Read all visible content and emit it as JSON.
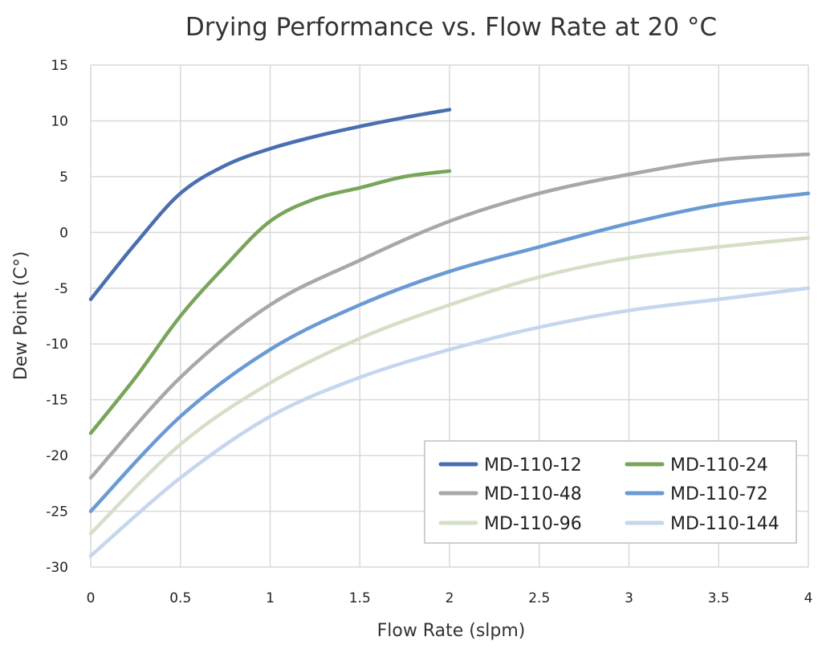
{
  "chart_data": {
    "type": "line",
    "title": "Drying Performance vs. Flow Rate at 20 °C",
    "xlabel": "Flow Rate (slpm)",
    "ylabel": "Dew Point (C°)",
    "xlim": [
      0,
      4
    ],
    "ylim": [
      -30,
      15
    ],
    "x_ticks": [
      0,
      0.5,
      1,
      1.5,
      2,
      2.5,
      3,
      3.5,
      4
    ],
    "y_ticks": [
      15,
      10,
      5,
      0,
      -5,
      -10,
      -15,
      -20,
      -25,
      -30
    ],
    "x_tick_labels": [
      "0",
      "0.5",
      "1",
      "1.5",
      "2",
      "2.5",
      "3",
      "3.5",
      "4"
    ],
    "y_tick_labels": [
      "15",
      "10",
      "5",
      "0",
      "-5",
      "-10",
      "-15",
      "-20",
      "-25",
      "-30"
    ],
    "grid": true,
    "legend_position": "bottom-right",
    "series": [
      {
        "name": "MD-110-12",
        "color": "#4a6fb0",
        "x": [
          0,
          0.25,
          0.5,
          0.75,
          1,
          1.25,
          1.5,
          1.75,
          2
        ],
        "y": [
          -6,
          -1,
          3.5,
          6,
          7.5,
          8.6,
          9.5,
          10.3,
          11
        ]
      },
      {
        "name": "MD-110-24",
        "color": "#78a55a",
        "x": [
          0,
          0.25,
          0.5,
          0.75,
          1,
          1.25,
          1.5,
          1.75,
          2
        ],
        "y": [
          -18,
          -13,
          -7.5,
          -3,
          1,
          3,
          4,
          5,
          5.5
        ]
      },
      {
        "name": "MD-110-48",
        "color": "#a8a8a8",
        "x": [
          0,
          0.5,
          1,
          1.5,
          2,
          2.5,
          3,
          3.5,
          4
        ],
        "y": [
          -22,
          -13,
          -6.5,
          -2.5,
          1,
          3.5,
          5.2,
          6.5,
          7
        ]
      },
      {
        "name": "MD-110-72",
        "color": "#6a9ad4",
        "x": [
          0,
          0.5,
          1,
          1.5,
          2,
          2.5,
          3,
          3.5,
          4
        ],
        "y": [
          -25,
          -16.5,
          -10.5,
          -6.5,
          -3.5,
          -1.3,
          0.8,
          2.5,
          3.5
        ]
      },
      {
        "name": "MD-110-96",
        "color": "#d5dfc8",
        "x": [
          0,
          0.5,
          1,
          1.5,
          2,
          2.5,
          3,
          3.5,
          4
        ],
        "y": [
          -27,
          -19,
          -13.5,
          -9.5,
          -6.5,
          -4,
          -2.3,
          -1.3,
          -0.5
        ]
      },
      {
        "name": "MD-110-144",
        "color": "#c5d6ee",
        "x": [
          0,
          0.5,
          1,
          1.5,
          2,
          2.5,
          3,
          3.5,
          4
        ],
        "y": [
          -29,
          -22,
          -16.5,
          -13,
          -10.5,
          -8.5,
          -7,
          -6,
          -5
        ]
      }
    ]
  }
}
